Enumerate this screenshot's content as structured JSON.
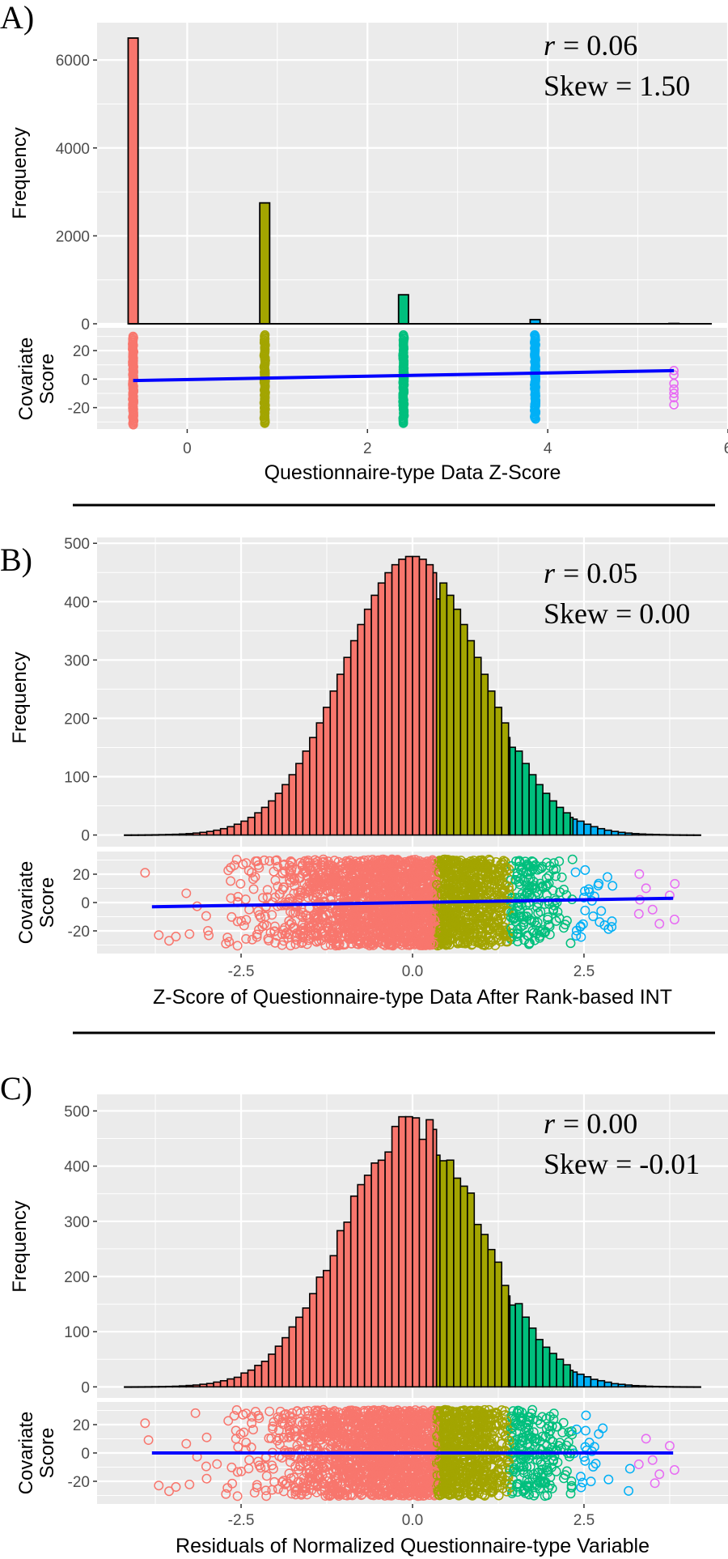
{
  "chart_data": [
    {
      "panel_label": "A)",
      "type": "bar",
      "annotations": {
        "r_label": "r",
        "r_value": "= 0.06",
        "skew": "Skew = 1.50"
      },
      "histogram": {
        "ylabel": "Frequency",
        "yticks": [
          0,
          2000,
          4000,
          6000
        ],
        "ylim": [
          0,
          6850
        ],
        "bins": [
          {
            "x": -0.6,
            "count": 6500,
            "group": "1"
          },
          {
            "x": 0.86,
            "count": 2750,
            "group": "2"
          },
          {
            "x": 2.4,
            "count": 660,
            "group": "3"
          },
          {
            "x": 3.86,
            "count": 95,
            "group": "4"
          },
          {
            "x": 5.4,
            "count": 8,
            "group": "5"
          }
        ],
        "bin_width": 0.11,
        "baseline_range": [
          -0.65,
          5.82
        ]
      },
      "scatter": {
        "type": "scatter",
        "ylabel": "Covariate Score",
        "yticks": [
          -20,
          0,
          20
        ],
        "ylim": [
          -35,
          36
        ],
        "groups": [
          {
            "x": -0.6,
            "y_range": [
              -32,
              30
            ],
            "group": "1"
          },
          {
            "x": 0.86,
            "y_range": [
              -31,
              31
            ],
            "group": "2"
          },
          {
            "x": 2.4,
            "y_range": [
              -31,
              31
            ],
            "group": "3"
          },
          {
            "x": 3.86,
            "y_range": [
              -28,
              31
            ],
            "group": "4"
          },
          {
            "x": 5.4,
            "y_points": [
              6,
              3,
              -3,
              -7,
              -10,
              -13,
              -18
            ],
            "group": "5"
          }
        ],
        "fit_line": {
          "x": [
            -0.6,
            5.4
          ],
          "y": [
            -1,
            6
          ]
        }
      },
      "xlabel": "Questionnaire-type Data Z-Score",
      "xticks": [
        0,
        2,
        4,
        6
      ],
      "xlim": [
        -1.0,
        6.0
      ]
    },
    {
      "panel_label": "B)",
      "type": "bar",
      "annotations": {
        "r_label": "r",
        "r_value": "= 0.05",
        "skew": "Skew = 0.00"
      },
      "histogram": {
        "ylabel": "Frequency",
        "yticks": [
          0,
          100,
          200,
          300,
          400,
          500
        ],
        "ylim": [
          -20,
          510
        ],
        "center": 0.0,
        "sigma": 1.0,
        "peak": 478,
        "bin_width": 0.1,
        "x_range": [
          -4.2,
          4.2
        ],
        "group_breaks": [
          0.35,
          1.42,
          2.34,
          3.3
        ]
      },
      "scatter": {
        "type": "scatter",
        "ylabel": "Covariate Score",
        "yticks": [
          -20,
          0,
          20
        ],
        "ylim": [
          -36,
          36
        ],
        "fit_line": {
          "x": [
            -3.8,
            3.8
          ],
          "y": [
            -3,
            3
          ]
        }
      },
      "xlabel": "Z-Score of Questionnaire-type Data After Rank-based INT",
      "xticks": [
        -2.5,
        0.0,
        2.5
      ],
      "xlim": [
        -4.6,
        4.6
      ]
    },
    {
      "panel_label": "C)",
      "type": "bar",
      "annotations": {
        "r_label": "r",
        "r_value": "= 0.00",
        "skew": "Skew = -0.01"
      },
      "histogram": {
        "ylabel": "Frequency",
        "yticks": [
          0,
          100,
          200,
          300,
          400,
          500
        ],
        "ylim": [
          -20,
          530
        ],
        "center": 0.0,
        "sigma": 1.0,
        "peak": 478,
        "bin_width": 0.1,
        "x_range": [
          -4.2,
          4.2
        ],
        "group_breaks": [
          0.35,
          1.42,
          2.34,
          3.3
        ]
      },
      "scatter": {
        "type": "scatter",
        "ylabel": "Covariate Score",
        "yticks": [
          -20,
          0,
          20
        ],
        "ylim": [
          -36,
          36
        ],
        "fit_line": {
          "x": [
            -3.8,
            3.8
          ],
          "y": [
            0,
            0
          ]
        }
      },
      "xlabel": "Residuals of Normalized Questionnaire-type Variable",
      "xticks": [
        -2.5,
        0.0,
        2.5
      ],
      "xlim": [
        -4.6,
        4.6
      ]
    }
  ],
  "colors": {
    "group_1": "#F8766D",
    "group_2": "#A3A500",
    "group_3": "#00BF7D",
    "group_4": "#00B0F6",
    "group_5": "#E76BF3",
    "fit_line": "#0000FF",
    "panel_bg": "#EBEBEB",
    "grid": "#FFFFFF"
  }
}
